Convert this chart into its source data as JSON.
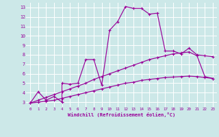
{
  "xlabel": "Windchill (Refroidissement éolien,°C)",
  "bg_color": "#cce8e8",
  "grid_color": "#ffffff",
  "line_color": "#990099",
  "xlim": [
    -0.5,
    23.5
  ],
  "ylim": [
    2.5,
    13.5
  ],
  "xticks": [
    0,
    1,
    2,
    3,
    4,
    5,
    6,
    7,
    8,
    9,
    10,
    11,
    12,
    13,
    14,
    15,
    16,
    17,
    18,
    19,
    20,
    21,
    22,
    23
  ],
  "yticks": [
    3,
    4,
    5,
    6,
    7,
    8,
    9,
    10,
    11,
    12,
    13
  ],
  "series1": [
    [
      0,
      2.9
    ],
    [
      1,
      4.1
    ],
    [
      2,
      3.2
    ],
    [
      3,
      3.6
    ],
    [
      4,
      3.0
    ],
    [
      4,
      5.0
    ],
    [
      5,
      4.9
    ],
    [
      6,
      5.0
    ],
    [
      7,
      7.5
    ],
    [
      8,
      7.5
    ],
    [
      9,
      4.8
    ],
    [
      10,
      10.6
    ],
    [
      11,
      11.5
    ],
    [
      12,
      13.1
    ],
    [
      13,
      12.9
    ],
    [
      14,
      12.9
    ],
    [
      15,
      12.3
    ],
    [
      16,
      12.4
    ],
    [
      17,
      8.4
    ],
    [
      18,
      8.4
    ],
    [
      19,
      8.1
    ],
    [
      20,
      8.7
    ],
    [
      21,
      8.0
    ],
    [
      22,
      7.9
    ],
    [
      23,
      7.8
    ]
  ],
  "series2": [
    [
      0,
      2.9
    ],
    [
      1,
      3.2
    ],
    [
      2,
      3.5
    ],
    [
      3,
      3.8
    ],
    [
      4,
      4.1
    ],
    [
      5,
      4.4
    ],
    [
      6,
      4.7
    ],
    [
      7,
      5.0
    ],
    [
      8,
      5.4
    ],
    [
      9,
      5.7
    ],
    [
      10,
      6.0
    ],
    [
      11,
      6.3
    ],
    [
      12,
      6.6
    ],
    [
      13,
      6.9
    ],
    [
      14,
      7.2
    ],
    [
      15,
      7.5
    ],
    [
      16,
      7.7
    ],
    [
      17,
      7.9
    ],
    [
      18,
      8.1
    ],
    [
      19,
      8.2
    ],
    [
      20,
      8.3
    ],
    [
      21,
      7.9
    ],
    [
      22,
      5.7
    ],
    [
      23,
      5.5
    ]
  ],
  "series3": [
    [
      0,
      2.9
    ],
    [
      1,
      3.0
    ],
    [
      2,
      3.1
    ],
    [
      3,
      3.2
    ],
    [
      4,
      3.4
    ],
    [
      5,
      3.6
    ],
    [
      6,
      3.8
    ],
    [
      7,
      4.0
    ],
    [
      8,
      4.2
    ],
    [
      9,
      4.4
    ],
    [
      10,
      4.6
    ],
    [
      11,
      4.8
    ],
    [
      12,
      5.0
    ],
    [
      13,
      5.1
    ],
    [
      14,
      5.3
    ],
    [
      15,
      5.4
    ],
    [
      16,
      5.5
    ],
    [
      17,
      5.6
    ],
    [
      18,
      5.65
    ],
    [
      19,
      5.7
    ],
    [
      20,
      5.75
    ],
    [
      21,
      5.7
    ],
    [
      22,
      5.6
    ],
    [
      23,
      5.5
    ]
  ]
}
